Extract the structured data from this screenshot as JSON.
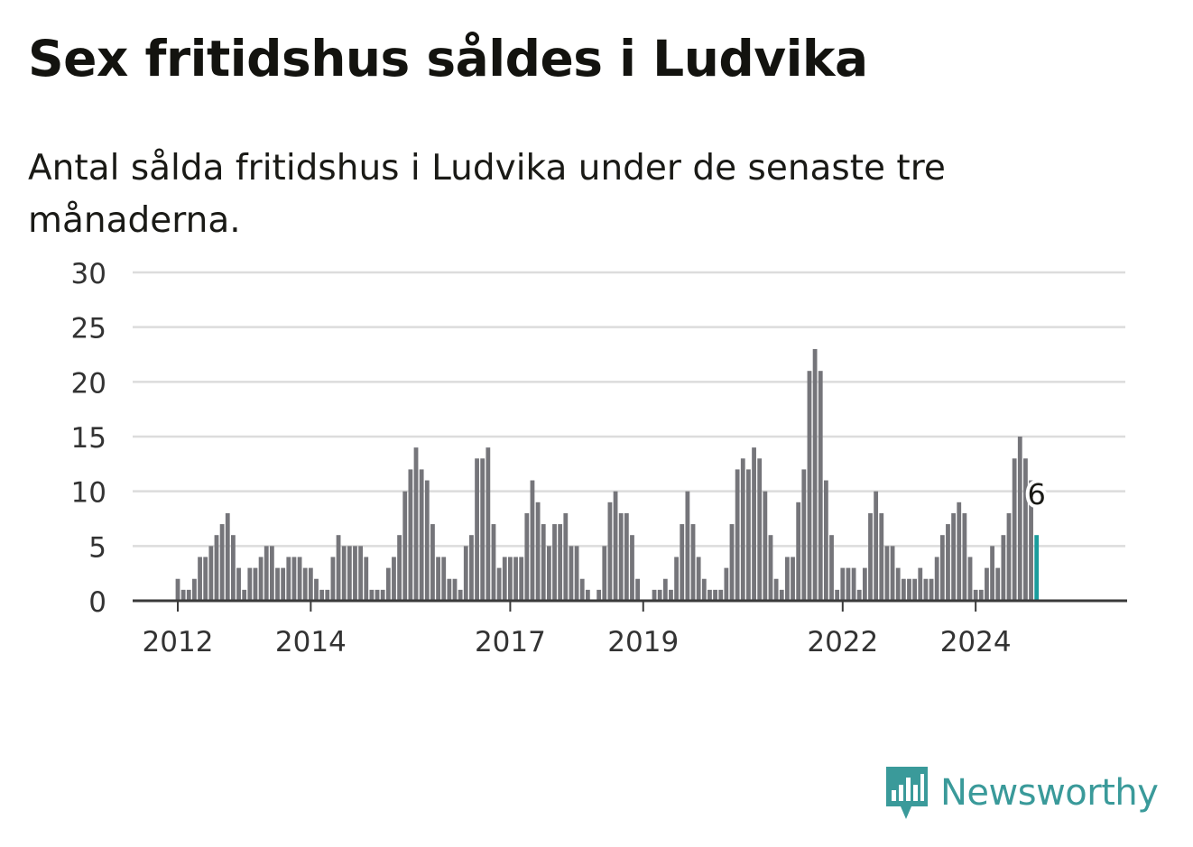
{
  "title": "Sex fritidshus såldes i Ludvika",
  "subtitle": "Antal sålda fritidshus i Ludvika under de senaste tre månaderna.",
  "brand": {
    "name": "Newsworthy",
    "color": "#3a9a9a"
  },
  "chart_data": {
    "type": "bar",
    "title": "Sex fritidshus såldes i Ludvika",
    "subtitle": "Antal sålda fritidshus i Ludvika under de senaste tre månaderna.",
    "ylim": [
      0,
      30
    ],
    "y_ticks": [
      0,
      5,
      10,
      15,
      20,
      25,
      30
    ],
    "x_tick_labels": [
      "2012",
      "2014",
      "2017",
      "2019",
      "2022",
      "2024"
    ],
    "grid": true,
    "bar_color": "#75757a",
    "highlight_color": "#1a9c9c",
    "highlight_label": "6",
    "start": "2012-01",
    "frequency": "monthly",
    "values": [
      2,
      1,
      1,
      2,
      4,
      4,
      5,
      6,
      7,
      8,
      6,
      3,
      1,
      3,
      3,
      4,
      5,
      5,
      3,
      3,
      4,
      4,
      4,
      3,
      3,
      2,
      1,
      1,
      4,
      6,
      5,
      5,
      5,
      5,
      4,
      1,
      1,
      1,
      3,
      4,
      6,
      10,
      12,
      14,
      12,
      11,
      7,
      4,
      4,
      2,
      2,
      1,
      5,
      6,
      13,
      13,
      14,
      7,
      3,
      4,
      4,
      4,
      4,
      8,
      11,
      9,
      7,
      5,
      7,
      7,
      8,
      5,
      5,
      2,
      1,
      0,
      1,
      5,
      9,
      10,
      8,
      8,
      6,
      2,
      0,
      0,
      1,
      1,
      2,
      1,
      4,
      7,
      10,
      7,
      4,
      2,
      1,
      1,
      1,
      3,
      7,
      12,
      13,
      12,
      14,
      13,
      10,
      6,
      2,
      1,
      4,
      4,
      9,
      12,
      21,
      23,
      21,
      11,
      6,
      1,
      3,
      3,
      3,
      1,
      3,
      8,
      10,
      8,
      5,
      5,
      3,
      2,
      2,
      2,
      3,
      2,
      2,
      4,
      6,
      7,
      8,
      9,
      8,
      4,
      1,
      1,
      3,
      5,
      3,
      6,
      8,
      13,
      15,
      13,
      11,
      6
    ]
  }
}
